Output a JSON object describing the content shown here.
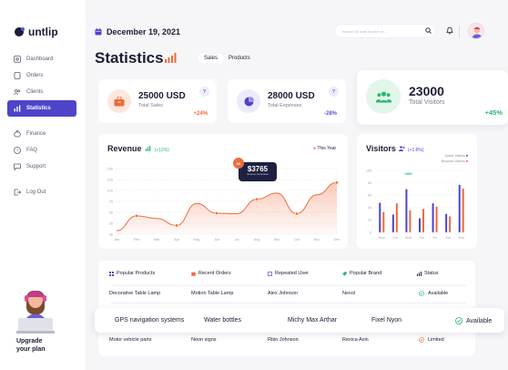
{
  "brand": {
    "name": "untlip"
  },
  "sidebar": {
    "items": [
      {
        "label": "Dashboard",
        "icon": "dashboard-icon"
      },
      {
        "label": "Orders",
        "icon": "orders-icon"
      },
      {
        "label": "Clients",
        "icon": "clients-icon"
      },
      {
        "label": "Statistics",
        "icon": "statistics-icon",
        "active": true
      },
      {
        "label": "Finance",
        "icon": "finance-icon"
      },
      {
        "label": "FAQ",
        "icon": "faq-icon"
      },
      {
        "label": "Support",
        "icon": "support-icon"
      },
      {
        "label": "Log Out",
        "icon": "logout-icon"
      }
    ],
    "upgrade_line1": "Upgrade",
    "upgrade_line2": "your plan"
  },
  "header": {
    "date": "December 19, 2021",
    "search_placeholder": "Search by date invoice or..."
  },
  "page": {
    "title": "Statistics",
    "tabs": [
      "Sales",
      "Products"
    ],
    "selected_tab": "Sales"
  },
  "stats": [
    {
      "value": "25000 USD",
      "label": "Total Sales",
      "change": "+24%",
      "change_color": "#f06a3c",
      "icon": "shopping-bag-icon",
      "icon_bg": "#fde7dd",
      "icon_color": "#f06a3c"
    },
    {
      "value": "28000 USD",
      "label": "Total Expenses",
      "change": "-28%",
      "change_color": "#5a55d6",
      "icon": "pie-chart-icon",
      "icon_bg": "#ecebfb",
      "icon_color": "#4e44c9"
    },
    {
      "value": "23000",
      "label": "Total Visitors",
      "change": "+45%",
      "change_color": "#2bb673",
      "icon": "users-icon",
      "icon_bg": "#e2f6ec",
      "icon_color": "#2bb673"
    }
  ],
  "help_glyph": "?",
  "revenue": {
    "title": "Revenue",
    "change": "(+12%)",
    "legend": "This Year",
    "tooltip_badge": "5K",
    "tooltip_value": "$3765",
    "tooltip_label": "Revenue Generated"
  },
  "visitors": {
    "title": "Visitors",
    "change": "(+1.6%)",
    "legend": [
      "Active Visitors",
      "Bounced Visitors"
    ],
    "annotation": "+35%"
  },
  "chart_data": [
    {
      "type": "area",
      "title": "Revenue",
      "x": [
        "Jan",
        "Feb",
        "Mar",
        "Apr",
        "May",
        "Jun",
        "Jul",
        "Aug",
        "Sep",
        "Oct",
        "Nov",
        "Dec"
      ],
      "y_ticks": [
        "0k",
        "25",
        "50",
        "75",
        "100",
        "125",
        "150"
      ],
      "series": [
        {
          "name": "This Year",
          "values": [
            8,
            42,
            36,
            20,
            70,
            48,
            47,
            80,
            94,
            47,
            90,
            118
          ]
        }
      ],
      "ylim": [
        0,
        150
      ],
      "grid": true
    },
    {
      "type": "bar",
      "title": "Visitors",
      "categories": [
        "Mon",
        "Tue",
        "Wed",
        "Thu",
        "Fri",
        "Sat",
        "Sun"
      ],
      "y_ticks": [
        "0",
        "20",
        "40",
        "60",
        "80",
        "100"
      ],
      "series": [
        {
          "name": "Active Visitors",
          "values": [
            48,
            29,
            70,
            23,
            47,
            30,
            77
          ]
        },
        {
          "name": "Bounced Visitors",
          "values": [
            33,
            47,
            36,
            38,
            42,
            26,
            71
          ]
        }
      ],
      "ylim": [
        0,
        100
      ]
    }
  ],
  "table": {
    "headers": [
      {
        "label": "Popular Products",
        "icon": "products-icon"
      },
      {
        "label": "Recent Orders",
        "icon": "orders-icon"
      },
      {
        "label": "Repeated User",
        "icon": "user-icon"
      },
      {
        "label": "Popular Brand",
        "icon": "brand-icon"
      },
      {
        "label": "Status",
        "icon": "status-icon"
      }
    ],
    "rows": [
      {
        "product": "Decorative Table Lamp",
        "order": "Motion Table Lamp",
        "user": "Alex Johnson",
        "brand": "Nexol",
        "status": "Available"
      },
      {
        "product": "GPS navigation systems",
        "order": "Water bottles",
        "user": "Michy Max Arthar",
        "brand": "Fixel Nyon",
        "status": "Available"
      },
      {
        "product": "Motor vehicle parts",
        "order": "Neon signs",
        "user": "Rbin Johnson",
        "brand": "Rexica Axin",
        "status": "Limited"
      }
    ]
  },
  "colors": {
    "accent": "#4e44c9",
    "orange": "#f06a3c",
    "green": "#2bb673",
    "active_bar": "#4e44c9",
    "bounced_bar": "#f06a3c"
  }
}
